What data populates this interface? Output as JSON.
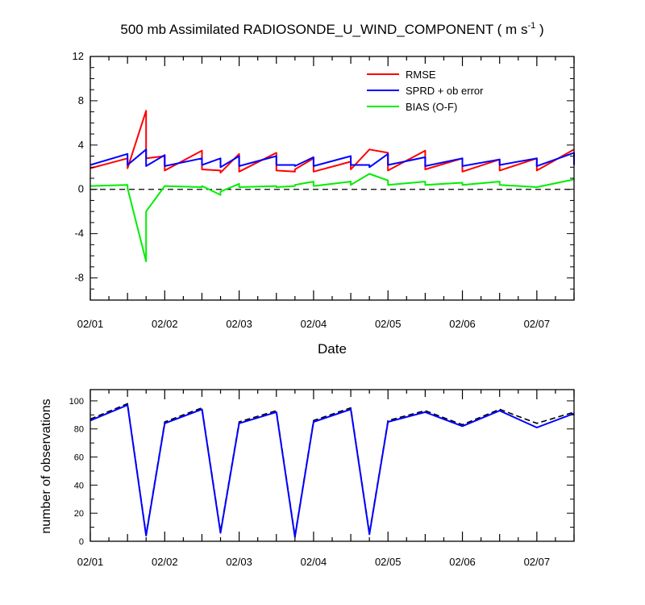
{
  "title": "500 mb Assimilated RADIOSONDE_U_WIND_COMPONENT ( m s",
  "title_superscript": "-1",
  "title_close": " )",
  "colors": {
    "rmse": "#ff0000",
    "sprd": "#0000ff",
    "bias": "#00ee00",
    "obs_dashed": "#000000",
    "obs_solid": "#0000ff"
  },
  "chart_data": [
    {
      "type": "line",
      "title": "500 mb Assimilated RADIOSONDE_U_WIND_COMPONENT ( m s-1 )",
      "xlabel": "Date",
      "ylabel": "",
      "x_units": "days since 02/01 00Z",
      "xlim": [
        0,
        6.5
      ],
      "ylim": [
        -10,
        12
      ],
      "yticks": [
        -8,
        -4,
        0,
        4,
        8,
        12
      ],
      "xtick_labels": [
        "02/01",
        "02/02",
        "02/03",
        "02/04",
        "02/05",
        "02/06",
        "02/07"
      ],
      "zero_line": "dashed",
      "legend_position": "top-right",
      "series": [
        {
          "name": "RMSE",
          "color_key": "rmse",
          "segments": [
            [
              [
                0,
                1.9
              ],
              [
                0.5,
                2.8
              ],
              [
                0.5,
                1.9
              ],
              [
                0.75,
                7.1
              ],
              [
                0.75,
                2.8
              ],
              [
                1.0,
                3.0
              ],
              [
                1.0,
                1.7
              ],
              [
                1.5,
                3.5
              ],
              [
                1.5,
                1.8
              ],
              [
                1.75,
                1.7
              ],
              [
                1.75,
                1.5
              ],
              [
                2.0,
                3.2
              ],
              [
                2.0,
                1.6
              ],
              [
                2.5,
                3.3
              ],
              [
                2.5,
                1.7
              ],
              [
                2.75,
                1.6
              ],
              [
                2.75,
                1.8
              ],
              [
                3.0,
                2.8
              ],
              [
                3.0,
                1.6
              ],
              [
                3.5,
                2.5
              ],
              [
                3.5,
                1.8
              ],
              [
                3.75,
                3.6
              ],
              [
                4.0,
                3.3
              ],
              [
                4.0,
                1.7
              ],
              [
                4.5,
                3.5
              ],
              [
                4.5,
                1.8
              ],
              [
                5.0,
                2.8
              ],
              [
                5.0,
                1.6
              ],
              [
                5.5,
                2.7
              ],
              [
                5.5,
                1.7
              ],
              [
                6.0,
                2.8
              ],
              [
                6.0,
                1.7
              ],
              [
                6.5,
                3.6
              ]
            ]
          ]
        },
        {
          "name": "SPRD + ob error",
          "color_key": "sprd",
          "segments": [
            [
              [
                0,
                2.2
              ],
              [
                0.5,
                3.2
              ],
              [
                0.5,
                2.2
              ],
              [
                0.75,
                3.6
              ],
              [
                0.75,
                2.1
              ],
              [
                1.0,
                3.1
              ],
              [
                1.0,
                2.1
              ],
              [
                1.5,
                2.8
              ],
              [
                1.5,
                2.2
              ],
              [
                1.75,
                2.8
              ],
              [
                1.75,
                2.0
              ],
              [
                2.0,
                3.0
              ],
              [
                2.0,
                2.1
              ],
              [
                2.5,
                3.0
              ],
              [
                2.5,
                2.2
              ],
              [
                2.75,
                2.2
              ],
              [
                2.75,
                2.1
              ],
              [
                3.0,
                2.9
              ],
              [
                3.0,
                2.1
              ],
              [
                3.5,
                3.0
              ],
              [
                3.5,
                2.2
              ],
              [
                3.75,
                2.2
              ],
              [
                3.75,
                2.0
              ],
              [
                4.0,
                3.2
              ],
              [
                4.0,
                2.2
              ],
              [
                4.5,
                2.9
              ],
              [
                4.5,
                2.1
              ],
              [
                5.0,
                2.8
              ],
              [
                5.0,
                2.1
              ],
              [
                5.5,
                2.7
              ],
              [
                5.5,
                2.2
              ],
              [
                6.0,
                2.8
              ],
              [
                6.0,
                2.1
              ],
              [
                6.5,
                3.3
              ],
              [
                6.5,
                2.2
              ]
            ]
          ]
        },
        {
          "name": "BIAS (O-F)",
          "color_key": "bias",
          "segments": [
            [
              [
                0,
                0.3
              ],
              [
                0.5,
                0.4
              ],
              [
                0.5,
                0.1
              ],
              [
                0.75,
                -6.5
              ],
              [
                0.75,
                -2.0
              ],
              [
                1.0,
                0.3
              ],
              [
                1.5,
                0.2
              ],
              [
                1.5,
                0.3
              ],
              [
                1.75,
                -0.5
              ],
              [
                1.75,
                -0.2
              ],
              [
                2.0,
                0.5
              ],
              [
                2.0,
                0.2
              ],
              [
                2.5,
                0.3
              ],
              [
                2.5,
                0.2
              ],
              [
                2.75,
                0.3
              ],
              [
                2.75,
                0.4
              ],
              [
                3.0,
                0.7
              ],
              [
                3.0,
                0.3
              ],
              [
                3.5,
                0.7
              ],
              [
                3.5,
                0.4
              ],
              [
                3.75,
                1.4
              ],
              [
                4.0,
                0.8
              ],
              [
                4.0,
                0.4
              ],
              [
                4.5,
                0.7
              ],
              [
                4.5,
                0.4
              ],
              [
                5.0,
                0.6
              ],
              [
                5.0,
                0.4
              ],
              [
                5.5,
                0.7
              ],
              [
                5.5,
                0.4
              ],
              [
                6.0,
                0.2
              ],
              [
                6.5,
                0.9
              ]
            ]
          ]
        }
      ]
    },
    {
      "type": "line",
      "title": "",
      "xlabel": "",
      "ylabel": "number of observations",
      "x_units": "days since 02/01 00Z",
      "xlim": [
        0,
        6.5
      ],
      "ylim": [
        0,
        108
      ],
      "yticks": [
        0,
        20,
        40,
        60,
        80,
        100
      ],
      "xtick_labels": [
        "02/01",
        "02/02",
        "02/03",
        "02/04",
        "02/05",
        "02/06",
        "02/07"
      ],
      "series": [
        {
          "name": "observations (dashed)",
          "color_key": "obs_dashed",
          "dashed": true,
          "x": [
            0,
            0.5,
            0.75,
            1.0,
            1.5,
            1.75,
            2.0,
            2.5,
            2.75,
            3.0,
            3.5,
            3.75,
            4.0,
            4.5,
            5.0,
            5.5,
            6.0,
            6.5
          ],
          "values": [
            87,
            98,
            5,
            85,
            95,
            7,
            85,
            93,
            4,
            86,
            95,
            6,
            86,
            93,
            83,
            94,
            84,
            92
          ]
        },
        {
          "name": "observations (solid)",
          "color_key": "obs_solid",
          "dashed": false,
          "x": [
            0,
            0.5,
            0.75,
            1.0,
            1.5,
            1.75,
            2.0,
            2.5,
            2.75,
            3.0,
            3.5,
            3.75,
            4.0,
            4.5,
            5.0,
            5.5,
            6.0,
            6.5
          ],
          "values": [
            86,
            97,
            4,
            84,
            94,
            6,
            84,
            92,
            3,
            85,
            94,
            5,
            85,
            92,
            82,
            93,
            81,
            91
          ]
        }
      ]
    }
  ]
}
